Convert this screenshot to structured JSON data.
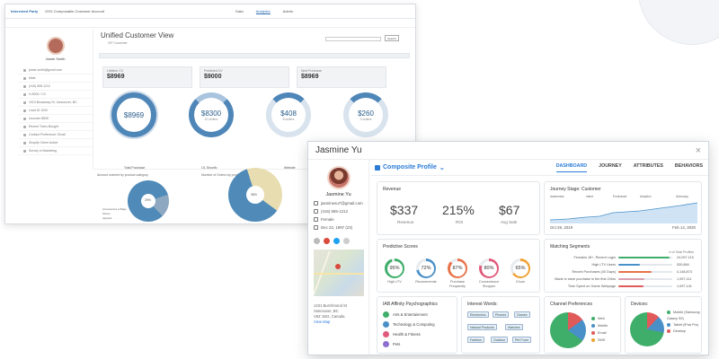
{
  "back_window": {
    "logo": "Interested Party",
    "title_crumb": "GSX Composable Customer Account",
    "tabs": [
      "Data",
      "Analytics",
      "Admin"
    ],
    "active_tab": "Analytics",
    "person_name": "Jamie Smith",
    "page_title": "Unified Customer View",
    "page_subtitle": "VIP Customer",
    "search_btn": "Search",
    "sidebar_rows": [
      "jamie.smith@gmail.com",
      "Male",
      "(415) 555-1212",
      "H-5000 / CV",
      "1919 Broadway St, Vancouver, BC",
      "Lead ID 1000",
      "Incomes $50K",
      "Recent Trans Bought",
      "Contact Preference: Email",
      "Shopify Cheer Active",
      "Survey in Marketing"
    ],
    "kpis": [
      {
        "label": "Lifetime CV",
        "value": "$8969"
      },
      {
        "label": "Predicted CV",
        "value": "$9000"
      },
      {
        "label": "Next Purchase",
        "value": "$8969"
      }
    ],
    "circles": [
      {
        "value": "$8969",
        "label": ""
      },
      {
        "value": "$8300",
        "label": "10 orders"
      },
      {
        "value": "$408",
        "label": "8 orders"
      },
      {
        "value": "$260",
        "label": "3 orders"
      }
    ],
    "circle_captions": [
      "Total Purchase",
      "Q1 Shopify",
      "Website",
      "Retail"
    ],
    "bottom_titles": [
      "Amount ordered by product category",
      "Number of Orders by product category"
    ],
    "legend": [
      "Accessories & Bags",
      "Shoes",
      "Apparel"
    ],
    "pie_labels": [
      "29%",
      "38%"
    ]
  },
  "front_window": {
    "name": "Jasmine Yu",
    "email": "jasminesu7@gmail.com",
    "phone": "(415) 555-1212",
    "gender": "Female",
    "dob": "Dec 22, 1997 (23)",
    "address": [
      "1431 Burchmond St",
      "Vancouver, BC",
      "V6Z 1W2, Canada"
    ],
    "view_map": "View Map",
    "brand": "Composite Profile",
    "tabs": [
      "DASHBOARD",
      "JOURNEY",
      "ATTRIBUTES",
      "BEHAVIORS"
    ],
    "active_tab": "DASHBOARD",
    "revenue": {
      "title": "Revenue",
      "items": [
        {
          "value": "$337",
          "label": "Revenue"
        },
        {
          "value": "215%",
          "label": "ROI"
        },
        {
          "value": "$67",
          "label": "Avg Sale"
        }
      ]
    },
    "journey": {
      "title": "Journey Stage: Customer",
      "stages": [
        "Awareness",
        "Intent",
        "Purchased",
        "Adoption",
        "Advocacy"
      ],
      "start": "Oct 29, 2019",
      "end": "Feb 14, 2020"
    },
    "predictive": {
      "title": "Predictive Scores",
      "scores": [
        {
          "value": "95%",
          "label": "High LTV",
          "pct": 95,
          "color": "#3fae6a"
        },
        {
          "value": "72%",
          "label": "Recommends",
          "pct": 72,
          "color": "#4a90c8"
        },
        {
          "value": "87%",
          "label": "Purchase Frequently",
          "pct": 87,
          "color": "#e8734a"
        },
        {
          "value": "80%",
          "label": "Convenience Shopper",
          "pct": 80,
          "color": "#e05a7a"
        },
        {
          "value": "65%",
          "label": "Churn",
          "pct": 65,
          "color": "#f0a030"
        }
      ]
    },
    "matching": {
      "title": "Matching Segments",
      "header": "# of Total Profiles",
      "rows": [
        {
          "label": "Females 18+, Recent Login",
          "count": "24,097,115",
          "pct": 95,
          "color": "#3fae6a"
        },
        {
          "label": "High LTV Users",
          "count": "530,884",
          "pct": 40,
          "color": "#4a90c8"
        },
        {
          "label": "Recent Purchases (30 Days)",
          "count": "4,148,873",
          "pct": 62,
          "color": "#e8734a"
        },
        {
          "label": "Made in store purchase in the first 24hrs",
          "count": "1,097,111",
          "pct": 48,
          "color": "#d9a0b0"
        },
        {
          "label": "Time Spent on Game Webpage",
          "count": "1,097,141",
          "pct": 46,
          "color": "#e05a5a"
        }
      ]
    },
    "iab": {
      "title": "IAB Affinity Psychographics",
      "items": [
        {
          "label": "Arts & Entertainment",
          "color": "#3fae6a"
        },
        {
          "label": "Technology & Computing",
          "color": "#4a90c8"
        },
        {
          "label": "Health & Fitness",
          "color": "#e05a7a"
        },
        {
          "label": "Pets",
          "color": "#8e6fd0"
        }
      ]
    },
    "interest": {
      "title": "Interest Words:",
      "tags": [
        "Electronics",
        "Phones",
        "Games",
        "Natural Products",
        "Watches",
        "Fashion",
        "Outdoor",
        "Pet Food"
      ]
    },
    "channel": {
      "title": "Channel Preferences",
      "legend": [
        {
          "label": "Web",
          "color": "#3fae6a"
        },
        {
          "label": "Mobile",
          "color": "#4a90c8"
        },
        {
          "label": "Email",
          "color": "#e05a5a"
        },
        {
          "label": "SMS",
          "color": "#f0a030"
        }
      ]
    },
    "devices": {
      "title": "Devices:",
      "legend": [
        {
          "label": "Mobile (Samsung Galaxy S9)",
          "color": "#3fae6a"
        },
        {
          "label": "Tablet (iPad Pro)",
          "color": "#4a90c8"
        },
        {
          "label": "Desktop",
          "color": "#e05a5a"
        }
      ]
    }
  }
}
